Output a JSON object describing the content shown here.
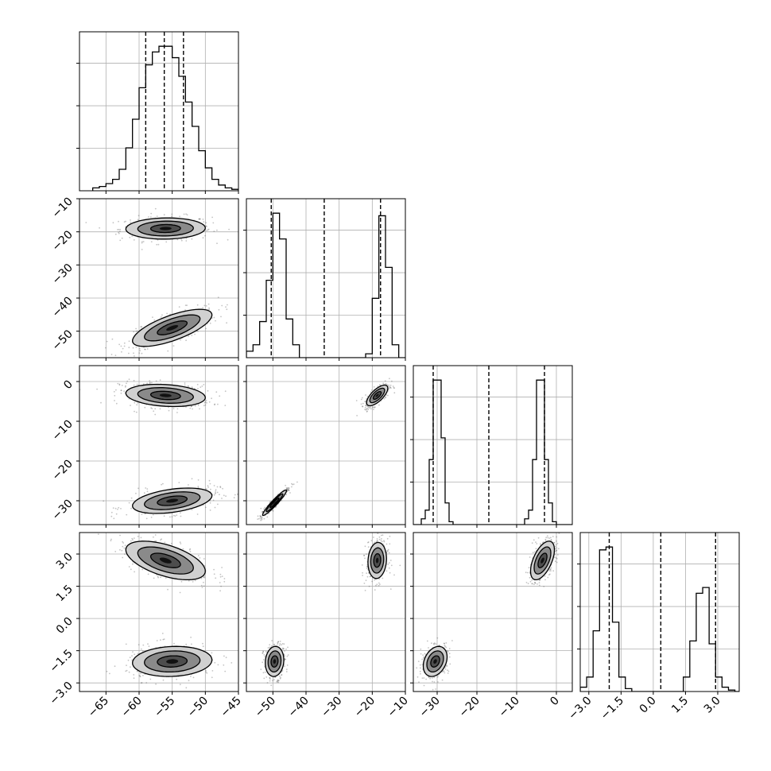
{
  "chart_data": {
    "type": "corner",
    "dimensions": [
      {
        "range": [
          -69,
          -45
        ],
        "ticks": [
          -65,
          -60,
          -55,
          -50,
          -45
        ],
        "tick_labels": [
          "−65",
          "−60",
          "−55",
          "−50",
          "−45"
        ]
      },
      {
        "range": [
          -58,
          -10
        ],
        "ticks": [
          -50,
          -40,
          -30,
          -20,
          -10
        ],
        "tick_labels": [
          "−50",
          "−40",
          "−30",
          "−20",
          "−10"
        ]
      },
      {
        "range": [
          -36,
          4
        ],
        "ticks": [
          -30,
          -20,
          -10,
          0
        ],
        "tick_labels": [
          "−30",
          "−20",
          "−10",
          "0"
        ]
      },
      {
        "range": [
          -3.4,
          4.0
        ],
        "ticks": [
          -3.0,
          -1.5,
          0.0,
          1.5,
          3.0
        ],
        "tick_labels": [
          "−3.0",
          "−1.5",
          "0.0",
          "1.5",
          "3.0"
        ]
      }
    ],
    "quantiles": [
      [
        -59.0,
        -56.2,
        -53.3
      ],
      [
        -50.5,
        -34.5,
        -17.5
      ],
      [
        -31.0,
        -17.0,
        -3.0
      ],
      [
        -2.05,
        0.35,
        2.9
      ]
    ],
    "histograms": [
      {
        "edges": [
          -67,
          -66,
          -65,
          -64,
          -63,
          -62,
          -61,
          -60,
          -59,
          -58,
          -57,
          -56,
          -55,
          -54,
          -53,
          -52,
          -51,
          -50,
          -49,
          -48,
          -47,
          -46,
          -45
        ],
        "counts": [
          2,
          3,
          5,
          8,
          15,
          30,
          50,
          72,
          88,
          97,
          101,
          101,
          93,
          80,
          62,
          45,
          28,
          16,
          8,
          4,
          2,
          1
        ]
      },
      {
        "edges": [
          -58,
          -56,
          -54,
          -52,
          -50,
          -48,
          -46,
          -44,
          -42,
          -40,
          -38,
          -36,
          -34,
          -32,
          -30,
          -28,
          -26,
          -24,
          -22,
          -20,
          -18,
          -16,
          -14,
          -12,
          -10
        ],
        "counts": [
          5,
          10,
          28,
          60,
          112,
          92,
          30,
          10,
          0,
          0,
          0,
          0,
          0,
          0,
          0,
          0,
          0,
          0,
          3,
          46,
          110,
          70,
          10,
          0
        ]
      },
      {
        "edges": [
          -36,
          -35,
          -34,
          -33,
          -32,
          -31,
          -30,
          -29,
          -28,
          -27,
          -26,
          -25,
          -24,
          -23,
          -22,
          -21,
          -20,
          -19,
          -18,
          -17,
          -16,
          -15,
          -14,
          -13,
          -12,
          -11,
          -10,
          -9,
          -8,
          -7,
          -6,
          -5,
          -4,
          -3,
          -2,
          -1,
          0,
          1,
          2,
          3,
          4
        ],
        "counts": [
          0,
          0,
          4,
          10,
          45,
          100,
          100,
          60,
          15,
          2,
          0,
          0,
          0,
          0,
          0,
          0,
          0,
          0,
          0,
          0,
          0,
          0,
          0,
          0,
          0,
          0,
          0,
          0,
          4,
          10,
          45,
          100,
          100,
          45,
          15,
          2,
          0,
          0,
          0,
          0
        ]
      },
      {
        "edges": [
          -3.4,
          -3.1,
          -2.8,
          -2.5,
          -2.2,
          -1.9,
          -1.6,
          -1.3,
          -1.0,
          -0.7,
          -0.4,
          -0.1,
          0.2,
          0.5,
          0.8,
          1.1,
          1.4,
          1.7,
          2.0,
          2.3,
          2.6,
          2.9,
          3.2,
          3.5,
          3.8,
          4.1
        ],
        "counts": [
          3,
          10,
          42,
          98,
          100,
          48,
          10,
          2,
          0,
          0,
          0,
          0,
          0,
          0,
          0,
          0,
          10,
          35,
          68,
          72,
          33,
          10,
          3,
          1,
          0
        ]
      }
    ],
    "clusters_2d": [
      {
        "x_dim": 0,
        "y_dim": 1,
        "centers": [
          [
            -56,
            -19
          ],
          [
            -55,
            -49
          ]
        ],
        "spread": [
          [
            3.0,
            1.6,
            0.05
          ],
          [
            3.0,
            2.8,
            0.7
          ]
        ]
      },
      {
        "x_dim": 0,
        "y_dim": 2,
        "centers": [
          [
            -56,
            -3.5
          ],
          [
            -55,
            -30
          ]
        ],
        "spread": [
          [
            3.0,
            1.4,
            -0.2
          ],
          [
            3.0,
            1.6,
            0.4
          ]
        ]
      },
      {
        "x_dim": 1,
        "y_dim": 2,
        "centers": [
          [
            -18.5,
            -3.5
          ],
          [
            -49.5,
            -30.5
          ]
        ],
        "spread": [
          [
            1.6,
            1.3,
            0.7
          ],
          [
            1.8,
            1.6,
            0.95
          ]
        ]
      },
      {
        "x_dim": 0,
        "y_dim": 3,
        "centers": [
          [
            -56,
            2.7
          ],
          [
            -55,
            -2.0
          ]
        ],
        "spread": [
          [
            3.0,
            0.45,
            -0.55
          ],
          [
            3.0,
            0.35,
            0.1
          ]
        ]
      },
      {
        "x_dim": 1,
        "y_dim": 3,
        "centers": [
          [
            -18.5,
            2.7
          ],
          [
            -49.5,
            -2.0
          ]
        ],
        "spread": [
          [
            1.4,
            0.42,
            0.1
          ],
          [
            1.4,
            0.35,
            0.1
          ]
        ]
      },
      {
        "x_dim": 2,
        "y_dim": 3,
        "centers": [
          [
            -3.5,
            2.7
          ],
          [
            -30.5,
            -2.0
          ]
        ],
        "spread": [
          [
            1.5,
            0.45,
            0.55
          ],
          [
            1.5,
            0.35,
            0.3
          ]
        ]
      }
    ],
    "grid": true,
    "contour_levels": [
      1,
      2,
      3
    ],
    "colors": {
      "line": "#000000",
      "grid": "#b0b0b0",
      "points": "#555555",
      "fill_inner": "#4d4d4d",
      "fill_mid": "#8a8a8a",
      "fill_outer": "#d0d0d0"
    }
  }
}
